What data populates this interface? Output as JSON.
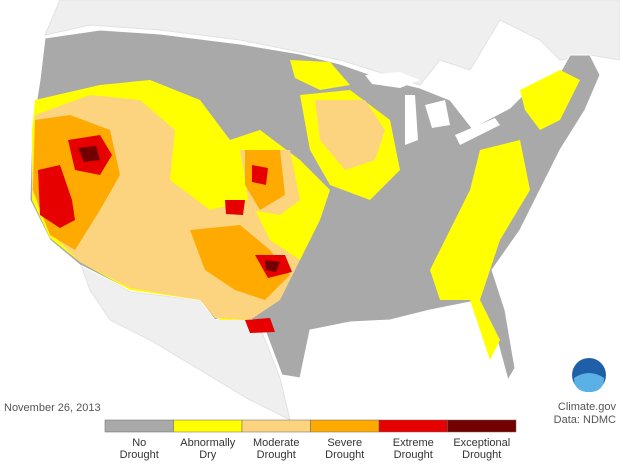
{
  "date": "November 26, 2013",
  "credit": "Climate.gov",
  "source": "Data: NDMC",
  "legend": [
    {
      "lines": [
        "No",
        "Drought"
      ],
      "color": "#a9a9a9"
    },
    {
      "lines": [
        "Abnormally",
        "Dry"
      ],
      "color": "#ffff00"
    },
    {
      "lines": [
        "Moderate",
        "Drought"
      ],
      "color": "#fcd37f"
    },
    {
      "lines": [
        "Severe",
        "Drought"
      ],
      "color": "#ffaa00"
    },
    {
      "lines": [
        "Extreme",
        "Drought"
      ],
      "color": "#e60000"
    },
    {
      "lines": [
        "Exceptional",
        "Drought"
      ],
      "color": "#730000"
    }
  ]
}
